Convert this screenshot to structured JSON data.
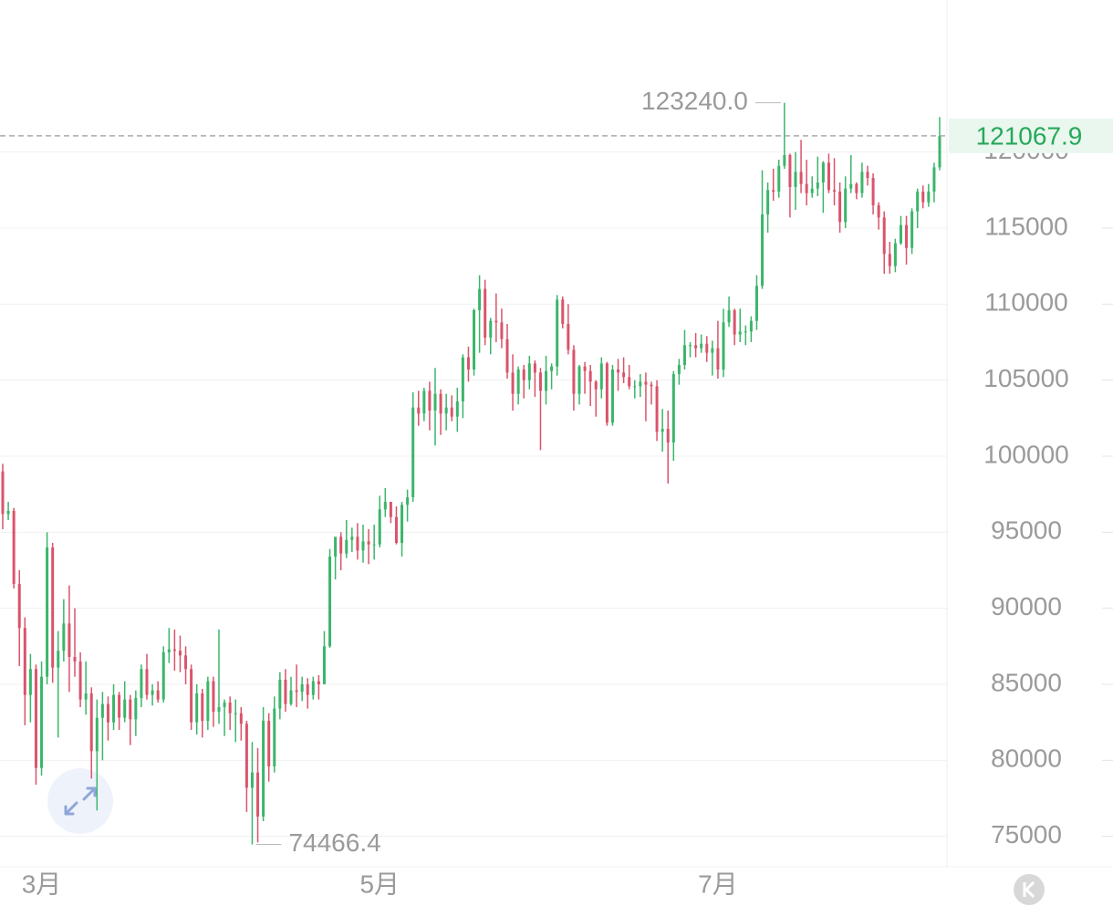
{
  "chart_data": {
    "type": "candlestick",
    "up_color": "#3bb56a",
    "down_color": "#d9546b",
    "ylim": [
      73000,
      130000
    ],
    "yticks": [
      75000,
      80000,
      85000,
      90000,
      95000,
      100000,
      105000,
      110000,
      115000,
      120000
    ],
    "grid": true,
    "categories": [
      null,
      null,
      null,
      null,
      null,
      null,
      null,
      "3月",
      null,
      null,
      null,
      null,
      null,
      null,
      null,
      null,
      null,
      null,
      null,
      null,
      null,
      null,
      null,
      null,
      null,
      null,
      null,
      null,
      null,
      null,
      null,
      null,
      null,
      null,
      null,
      null,
      null,
      null,
      null,
      null,
      null,
      null,
      null,
      null,
      null,
      null,
      null,
      null,
      null,
      null,
      null,
      null,
      null,
      null,
      null,
      null,
      null,
      null,
      null,
      null,
      null,
      null,
      null,
      null,
      null,
      null,
      null,
      null,
      "5月",
      null,
      null,
      null,
      null,
      null,
      null,
      null,
      null,
      null,
      null,
      null,
      null,
      null,
      null,
      null,
      null,
      null,
      null,
      null,
      null,
      null,
      null,
      null,
      null,
      null,
      null,
      null,
      null,
      null,
      null,
      null,
      null,
      null,
      null,
      null,
      null,
      null,
      null,
      null,
      null,
      null,
      null,
      null,
      null,
      null,
      null,
      null,
      null,
      null,
      null,
      null,
      null,
      null,
      null,
      null,
      null,
      null,
      null,
      null,
      null,
      "7月",
      null,
      null,
      null,
      null,
      null,
      null,
      null,
      null,
      null,
      null,
      null,
      null,
      null,
      null,
      null,
      null,
      null,
      null,
      null,
      null,
      null,
      null,
      null,
      null,
      null,
      null,
      null,
      null,
      null,
      null,
      null,
      null,
      null,
      null,
      null,
      null,
      null,
      null,
      null,
      null
    ],
    "ohlc": [
      [
        99000,
        99500,
        95200,
        96200
      ],
      [
        96200,
        97000,
        95800,
        96400
      ],
      [
        96400,
        96600,
        91300,
        91600
      ],
      [
        91600,
        92500,
        86200,
        88700
      ],
      [
        88700,
        89400,
        82300,
        84300
      ],
      [
        84300,
        87000,
        82500,
        86000
      ],
      [
        86000,
        86300,
        78400,
        79500
      ],
      [
        79500,
        86500,
        79000,
        85500
      ],
      [
        85500,
        95000,
        85000,
        94000
      ],
      [
        94000,
        94300,
        85100,
        86100
      ],
      [
        86100,
        88500,
        81500,
        87200
      ],
      [
        87200,
        90600,
        86500,
        89000
      ],
      [
        89000,
        91500,
        84500,
        86800
      ],
      [
        86800,
        90000,
        85500,
        86500
      ],
      [
        86500,
        87100,
        83500,
        84000
      ],
      [
        84000,
        86500,
        83000,
        84400
      ],
      [
        84400,
        84800,
        78800,
        80600
      ],
      [
        80600,
        84000,
        76700,
        82800
      ],
      [
        82800,
        84500,
        80000,
        83700
      ],
      [
        83700,
        84200,
        81300,
        82500
      ],
      [
        82500,
        85000,
        82000,
        84300
      ],
      [
        84300,
        84500,
        82000,
        82800
      ],
      [
        82800,
        85200,
        82500,
        84000
      ],
      [
        84000,
        84300,
        81000,
        82700
      ],
      [
        82700,
        84600,
        81600,
        84100
      ],
      [
        84100,
        86300,
        83500,
        86000
      ],
      [
        86000,
        87000,
        84000,
        84300
      ],
      [
        84300,
        85000,
        83600,
        84600
      ],
      [
        84600,
        85200,
        83800,
        84000
      ],
      [
        84000,
        87500,
        83800,
        87100
      ],
      [
        87100,
        88700,
        86400,
        87300
      ],
      [
        87300,
        88600,
        85900,
        87200
      ],
      [
        87200,
        88200,
        85800,
        86900
      ],
      [
        86900,
        87500,
        85000,
        86000
      ],
      [
        86000,
        86300,
        82000,
        82500
      ],
      [
        82500,
        85000,
        81700,
        84400
      ],
      [
        84400,
        84700,
        81500,
        82600
      ],
      [
        82600,
        85500,
        82000,
        85200
      ],
      [
        85200,
        85500,
        82200,
        83200
      ],
      [
        83200,
        88600,
        82400,
        83500
      ],
      [
        83500,
        84000,
        81600,
        83800
      ],
      [
        83800,
        84200,
        82000,
        83100
      ],
      [
        83100,
        84000,
        81200,
        83100
      ],
      [
        83100,
        83500,
        81300,
        82400
      ],
      [
        82400,
        82600,
        76600,
        78200
      ],
      [
        78200,
        81200,
        74466.4,
        79200
      ],
      [
        79200,
        80800,
        74600,
        76300
      ],
      [
        76300,
        83500,
        76000,
        82600
      ],
      [
        82600,
        83100,
        78600,
        79600
      ],
      [
        79600,
        84200,
        79200,
        83400
      ],
      [
        83400,
        85800,
        82700,
        85300
      ],
      [
        85300,
        86000,
        83200,
        83700
      ],
      [
        83700,
        85500,
        83600,
        84600
      ],
      [
        84600,
        86300,
        83500,
        84500
      ],
      [
        84500,
        85500,
        83900,
        85000
      ],
      [
        85000,
        85400,
        83400,
        84300
      ],
      [
        84300,
        85500,
        84000,
        85200
      ],
      [
        85200,
        85600,
        84000,
        85000
      ],
      [
        85000,
        88500,
        85000,
        87500
      ],
      [
        87500,
        93900,
        87400,
        93400
      ],
      [
        93400,
        94700,
        91900,
        94700
      ],
      [
        94700,
        95000,
        92500,
        93600
      ],
      [
        93600,
        95800,
        93300,
        94500
      ],
      [
        94500,
        95300,
        93700,
        94700
      ],
      [
        94700,
        95600,
        93200,
        93800
      ],
      [
        93800,
        95500,
        93000,
        94400
      ],
      [
        94400,
        95200,
        92900,
        94200
      ],
      [
        94200,
        95500,
        93200,
        94200
      ],
      [
        94200,
        97400,
        94000,
        96500
      ],
      [
        96500,
        97900,
        96000,
        97000
      ],
      [
        97000,
        97000,
        95600,
        96000
      ],
      [
        96000,
        96700,
        94200,
        94300
      ],
      [
        94300,
        97000,
        93400,
        96800
      ],
      [
        96800,
        97800,
        95700,
        97300
      ],
      [
        97300,
        104200,
        97000,
        103200
      ],
      [
        103200,
        104300,
        102000,
        102800
      ],
      [
        102800,
        104500,
        102300,
        104300
      ],
      [
        104300,
        104900,
        101700,
        103000
      ],
      [
        103000,
        105800,
        100700,
        104100
      ],
      [
        104100,
        104400,
        101400,
        102800
      ],
      [
        102800,
        104100,
        101700,
        103200
      ],
      [
        103200,
        104000,
        102300,
        102600
      ],
      [
        102600,
        104500,
        101600,
        103600
      ],
      [
        103600,
        106700,
        102500,
        106500
      ],
      [
        106500,
        107200,
        104900,
        105700
      ],
      [
        105700,
        109700,
        105300,
        109600
      ],
      [
        109600,
        111900,
        106800,
        111000
      ],
      [
        111000,
        111600,
        107300,
        107800
      ],
      [
        107800,
        109100,
        106700,
        108900
      ],
      [
        108900,
        110700,
        107500,
        108800
      ],
      [
        108800,
        109700,
        107100,
        107700
      ],
      [
        107700,
        108700,
        105100,
        105500
      ],
      [
        105500,
        106700,
        103000,
        104100
      ],
      [
        104100,
        105900,
        103400,
        105700
      ],
      [
        105700,
        106000,
        103800,
        105000
      ],
      [
        105000,
        106600,
        104400,
        106100
      ],
      [
        106100,
        106300,
        103900,
        105500
      ],
      [
        105500,
        105800,
        100400,
        104300
      ],
      [
        104300,
        106600,
        103400,
        105600
      ],
      [
        105600,
        106100,
        104400,
        105900
      ],
      [
        105900,
        110600,
        105300,
        110300
      ],
      [
        110300,
        110500,
        108400,
        108700
      ],
      [
        108700,
        110000,
        106700,
        107000
      ],
      [
        107000,
        107300,
        103000,
        104100
      ],
      [
        104100,
        106000,
        103400,
        105900
      ],
      [
        105900,
        106200,
        104100,
        105600
      ],
      [
        105600,
        106000,
        103300,
        104900
      ],
      [
        104900,
        105000,
        102600,
        104400
      ],
      [
        104400,
        106500,
        103800,
        106100
      ],
      [
        106100,
        106200,
        102000,
        102200
      ],
      [
        102200,
        106000,
        102000,
        105700
      ],
      [
        105700,
        106400,
        104300,
        105500
      ],
      [
        105500,
        106500,
        104800,
        105200
      ],
      [
        105200,
        106000,
        104400,
        104600
      ],
      [
        104600,
        105000,
        103800,
        104600
      ],
      [
        104600,
        105400,
        103900,
        104900
      ],
      [
        104900,
        105500,
        102300,
        104700
      ],
      [
        104700,
        104900,
        103400,
        104600
      ],
      [
        104600,
        105000,
        101000,
        101600
      ],
      [
        101600,
        103100,
        100300,
        101800
      ],
      [
        101800,
        103000,
        98200,
        100900
      ],
      [
        100900,
        105600,
        99700,
        105400
      ],
      [
        105400,
        106400,
        104700,
        106000
      ],
      [
        106000,
        108300,
        105700,
        107300
      ],
      [
        107300,
        107500,
        106500,
        107300
      ],
      [
        107300,
        108100,
        106500,
        107100
      ],
      [
        107100,
        108000,
        106800,
        107400
      ],
      [
        107400,
        107900,
        106200,
        106800
      ],
      [
        106800,
        107600,
        105300,
        107100
      ],
      [
        107100,
        108900,
        105100,
        105700
      ],
      [
        105700,
        109700,
        105200,
        108800
      ],
      [
        108800,
        110500,
        108500,
        109600
      ],
      [
        109600,
        109700,
        107300,
        108000
      ],
      [
        108000,
        109700,
        107500,
        108200
      ],
      [
        108200,
        108600,
        107300,
        108200
      ],
      [
        108200,
        109200,
        107500,
        108900
      ],
      [
        108900,
        111900,
        108300,
        111200
      ],
      [
        111200,
        118800,
        111000,
        115900
      ],
      [
        115900,
        118000,
        114700,
        117500
      ],
      [
        117500,
        118900,
        116800,
        117400
      ],
      [
        117400,
        119500,
        117000,
        119100
      ],
      [
        119100,
        123240,
        118900,
        119800
      ],
      [
        119800,
        119900,
        115700,
        117700
      ],
      [
        117700,
        120000,
        116200,
        118700
      ],
      [
        118700,
        120800,
        117300,
        117900
      ],
      [
        117900,
        119500,
        116500,
        117300
      ],
      [
        117300,
        118400,
        117000,
        117600
      ],
      [
        117600,
        119700,
        117100,
        118000
      ],
      [
        118000,
        119400,
        116000,
        119300
      ],
      [
        119300,
        119900,
        117300,
        117500
      ],
      [
        117500,
        119600,
        116500,
        117400
      ],
      [
        117400,
        118000,
        114700,
        115400
      ],
      [
        115400,
        118400,
        115000,
        117600
      ],
      [
        117600,
        119800,
        117300,
        117900
      ],
      [
        117900,
        118000,
        116900,
        117300
      ],
      [
        117300,
        119300,
        117000,
        118700
      ],
      [
        118700,
        119100,
        117800,
        118300
      ],
      [
        118300,
        118600,
        115900,
        116500
      ],
      [
        116500,
        116700,
        114900,
        115700
      ],
      [
        115700,
        116100,
        112000,
        113300
      ],
      [
        113300,
        114100,
        112000,
        112500
      ],
      [
        112500,
        114300,
        112100,
        114000
      ],
      [
        114000,
        115800,
        113900,
        115200
      ],
      [
        115200,
        115800,
        112600,
        113700
      ],
      [
        113700,
        116300,
        113300,
        116100
      ],
      [
        116100,
        117600,
        115000,
        117400
      ],
      [
        117400,
        117800,
        116300,
        116700
      ],
      [
        116700,
        117900,
        116400,
        117400
      ],
      [
        117400,
        119300,
        116700,
        119000
      ],
      [
        119000,
        122300,
        118800,
        121067.9
      ]
    ],
    "annotations": [
      {
        "value": 123240,
        "label": "123240.0"
      },
      {
        "value": 74466.4,
        "label": "74466.4"
      }
    ]
  }
}
